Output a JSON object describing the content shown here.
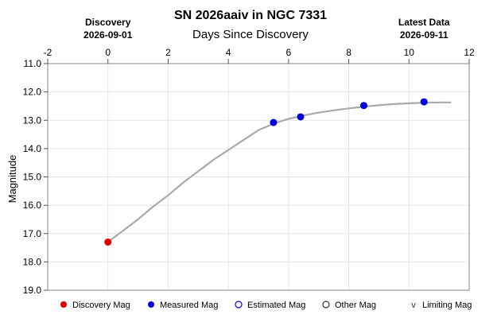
{
  "chart_data": {
    "type": "line",
    "title": "SN 2026aaiv in NGC 7331",
    "xlabel": "Days Since Discovery",
    "ylabel": "Magnitude",
    "xlim": [
      -2,
      12
    ],
    "ylim": [
      11.0,
      19.0
    ],
    "y_inverted": true,
    "x_ticks": [
      "-2",
      "0",
      "2",
      "4",
      "6",
      "8",
      "10",
      "12"
    ],
    "y_ticks": [
      "11.0",
      "12.0",
      "13.0",
      "14.0",
      "15.0",
      "16.0",
      "17.0",
      "18.0",
      "19.0"
    ],
    "grid": true,
    "discovery": {
      "label": "Discovery",
      "date": "2026-09-01",
      "x": 0
    },
    "latest": {
      "label": "Latest Data",
      "date": "2026-09-11",
      "x": 10.5
    },
    "curve": {
      "color": "#aaaaaa",
      "x": [
        0,
        0.5,
        1,
        1.5,
        2,
        2.5,
        3,
        3.5,
        4,
        4.5,
        5,
        5.5,
        6,
        6.5,
        7,
        7.5,
        8,
        8.5,
        9,
        9.5,
        10,
        10.5,
        11,
        11.4
      ],
      "y": [
        17.3,
        16.9,
        16.5,
        16.05,
        15.65,
        15.2,
        14.8,
        14.4,
        14.05,
        13.7,
        13.35,
        13.12,
        12.95,
        12.83,
        12.73,
        12.65,
        12.58,
        12.52,
        12.47,
        12.43,
        12.4,
        12.38,
        12.37,
        12.37
      ]
    },
    "series": [
      {
        "name": "Discovery Mag",
        "color": "#e00000",
        "x": [
          0
        ],
        "y": [
          17.3
        ]
      },
      {
        "name": "Measured Mag",
        "color": "#0000dd",
        "x": [
          5.5,
          6.4,
          8.5,
          10.5
        ],
        "y": [
          13.08,
          12.88,
          12.48,
          12.35
        ]
      }
    ],
    "legend": [
      {
        "label": "Discovery Mag",
        "marker": "filled-circle",
        "color": "#e00000"
      },
      {
        "label": "Measured Mag",
        "marker": "filled-circle",
        "color": "#0000dd"
      },
      {
        "label": "Estimated Mag",
        "marker": "open-circle",
        "color": "#0000dd"
      },
      {
        "label": "Other Mag",
        "marker": "open-circle",
        "color": "#333333"
      },
      {
        "label": "Limiting Mag",
        "marker": "v",
        "color": "#333333"
      }
    ],
    "legend_placement": "bottom"
  }
}
